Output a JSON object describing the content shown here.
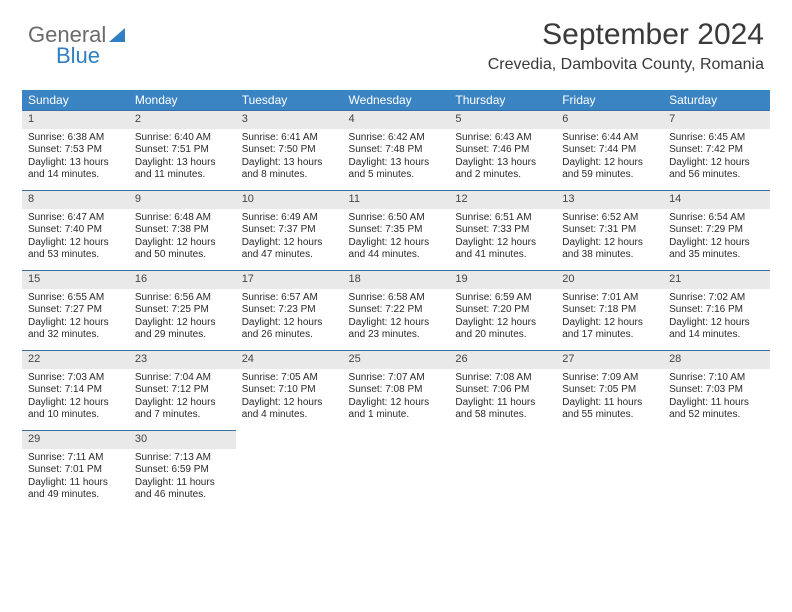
{
  "logo": {
    "general": "General",
    "blue": "Blue"
  },
  "title": "September 2024",
  "location": "Crevedia, Dambovita County, Romania",
  "colors": {
    "header_bg": "#3b84c4",
    "header_text": "#ffffff",
    "daynum_bg": "#e9e9e9",
    "daynum_border": "#3b6fa0",
    "logo_gray": "#6b6b6b",
    "logo_blue": "#2f7fc2",
    "text": "#2a2a2a",
    "title_color": "#3a3a3a",
    "background": "#ffffff"
  },
  "fonts": {
    "title_size_pt": 22,
    "location_size_pt": 12,
    "dayheader_size_pt": 9,
    "daynum_size_pt": 8,
    "body_size_pt": 7.5
  },
  "weekdays": [
    "Sunday",
    "Monday",
    "Tuesday",
    "Wednesday",
    "Thursday",
    "Friday",
    "Saturday"
  ],
  "days": [
    {
      "n": "1",
      "sr": "6:38 AM",
      "ss": "7:53 PM",
      "dl": "13 hours and 14 minutes."
    },
    {
      "n": "2",
      "sr": "6:40 AM",
      "ss": "7:51 PM",
      "dl": "13 hours and 11 minutes."
    },
    {
      "n": "3",
      "sr": "6:41 AM",
      "ss": "7:50 PM",
      "dl": "13 hours and 8 minutes."
    },
    {
      "n": "4",
      "sr": "6:42 AM",
      "ss": "7:48 PM",
      "dl": "13 hours and 5 minutes."
    },
    {
      "n": "5",
      "sr": "6:43 AM",
      "ss": "7:46 PM",
      "dl": "13 hours and 2 minutes."
    },
    {
      "n": "6",
      "sr": "6:44 AM",
      "ss": "7:44 PM",
      "dl": "12 hours and 59 minutes."
    },
    {
      "n": "7",
      "sr": "6:45 AM",
      "ss": "7:42 PM",
      "dl": "12 hours and 56 minutes."
    },
    {
      "n": "8",
      "sr": "6:47 AM",
      "ss": "7:40 PM",
      "dl": "12 hours and 53 minutes."
    },
    {
      "n": "9",
      "sr": "6:48 AM",
      "ss": "7:38 PM",
      "dl": "12 hours and 50 minutes."
    },
    {
      "n": "10",
      "sr": "6:49 AM",
      "ss": "7:37 PM",
      "dl": "12 hours and 47 minutes."
    },
    {
      "n": "11",
      "sr": "6:50 AM",
      "ss": "7:35 PM",
      "dl": "12 hours and 44 minutes."
    },
    {
      "n": "12",
      "sr": "6:51 AM",
      "ss": "7:33 PM",
      "dl": "12 hours and 41 minutes."
    },
    {
      "n": "13",
      "sr": "6:52 AM",
      "ss": "7:31 PM",
      "dl": "12 hours and 38 minutes."
    },
    {
      "n": "14",
      "sr": "6:54 AM",
      "ss": "7:29 PM",
      "dl": "12 hours and 35 minutes."
    },
    {
      "n": "15",
      "sr": "6:55 AM",
      "ss": "7:27 PM",
      "dl": "12 hours and 32 minutes."
    },
    {
      "n": "16",
      "sr": "6:56 AM",
      "ss": "7:25 PM",
      "dl": "12 hours and 29 minutes."
    },
    {
      "n": "17",
      "sr": "6:57 AM",
      "ss": "7:23 PM",
      "dl": "12 hours and 26 minutes."
    },
    {
      "n": "18",
      "sr": "6:58 AM",
      "ss": "7:22 PM",
      "dl": "12 hours and 23 minutes."
    },
    {
      "n": "19",
      "sr": "6:59 AM",
      "ss": "7:20 PM",
      "dl": "12 hours and 20 minutes."
    },
    {
      "n": "20",
      "sr": "7:01 AM",
      "ss": "7:18 PM",
      "dl": "12 hours and 17 minutes."
    },
    {
      "n": "21",
      "sr": "7:02 AM",
      "ss": "7:16 PM",
      "dl": "12 hours and 14 minutes."
    },
    {
      "n": "22",
      "sr": "7:03 AM",
      "ss": "7:14 PM",
      "dl": "12 hours and 10 minutes."
    },
    {
      "n": "23",
      "sr": "7:04 AM",
      "ss": "7:12 PM",
      "dl": "12 hours and 7 minutes."
    },
    {
      "n": "24",
      "sr": "7:05 AM",
      "ss": "7:10 PM",
      "dl": "12 hours and 4 minutes."
    },
    {
      "n": "25",
      "sr": "7:07 AM",
      "ss": "7:08 PM",
      "dl": "12 hours and 1 minute."
    },
    {
      "n": "26",
      "sr": "7:08 AM",
      "ss": "7:06 PM",
      "dl": "11 hours and 58 minutes."
    },
    {
      "n": "27",
      "sr": "7:09 AM",
      "ss": "7:05 PM",
      "dl": "11 hours and 55 minutes."
    },
    {
      "n": "28",
      "sr": "7:10 AM",
      "ss": "7:03 PM",
      "dl": "11 hours and 52 minutes."
    },
    {
      "n": "29",
      "sr": "7:11 AM",
      "ss": "7:01 PM",
      "dl": "11 hours and 49 minutes."
    },
    {
      "n": "30",
      "sr": "7:13 AM",
      "ss": "6:59 PM",
      "dl": "11 hours and 46 minutes."
    }
  ],
  "labels": {
    "sunrise": "Sunrise:",
    "sunset": "Sunset:",
    "daylight": "Daylight:"
  }
}
